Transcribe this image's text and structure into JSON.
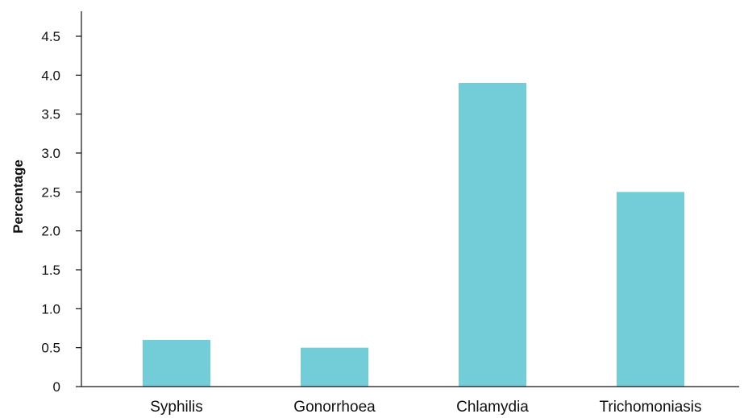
{
  "chart_data": {
    "type": "bar",
    "title": "",
    "xlabel": "",
    "ylabel": "Percentage",
    "categories": [
      "Syphilis",
      "Gonorrhoea",
      "Chlamydia",
      "Trichomoniasis"
    ],
    "values": [
      0.6,
      0.5,
      3.9,
      2.5
    ],
    "ylim": [
      0,
      4.5
    ],
    "yticks": [
      "0",
      "0.5",
      "1.0",
      "1.5",
      "2.0",
      "2.5",
      "3.0",
      "3.5",
      "4.0",
      "4.5"
    ],
    "ytick_values": [
      0,
      0.5,
      1.0,
      1.5,
      2.0,
      2.5,
      3.0,
      3.5,
      4.0,
      4.5
    ],
    "grid": false,
    "legend": "none",
    "bar_color": "#72CDD8",
    "axis_color": "#111111"
  }
}
